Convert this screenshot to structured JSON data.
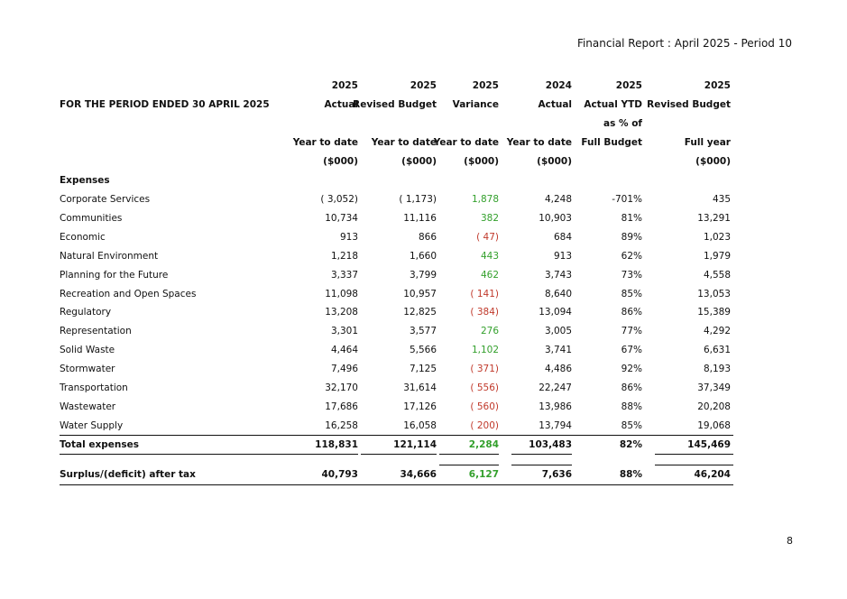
{
  "header": {
    "report_title": "Financial Report :  April 2025 - Period 10"
  },
  "page_number": "8",
  "table": {
    "period_label": "FOR THE PERIOD ENDED 30 APRIL 2025",
    "columns": [
      {
        "year": "2025",
        "title": "Actual",
        "extra": "",
        "subtitle": "Year to date",
        "unit": "($000)"
      },
      {
        "year": "2025",
        "title": "Revised Budget",
        "extra": "",
        "subtitle": "Year to date",
        "unit": "($000)"
      },
      {
        "year": "2025",
        "title": "Variance",
        "extra": "",
        "subtitle": "Year to date",
        "unit": "($000)"
      },
      {
        "year": "2024",
        "title": "Actual",
        "extra": "",
        "subtitle": "Year to date",
        "unit": "($000)"
      },
      {
        "year": "2025",
        "title": "Actual YTD",
        "extra": "as % of",
        "subtitle": "Full Budget",
        "unit": ""
      },
      {
        "year": "2025",
        "title": "Revised Budget",
        "extra": "",
        "subtitle": "Full year",
        "unit": "($000)"
      }
    ],
    "section_label": "Expenses",
    "rows": [
      {
        "label": "Corporate Services",
        "values": [
          "( 3,052)",
          "( 1,173)",
          "1,878",
          "4,248",
          "-701%",
          "435"
        ],
        "variance_sign": "pos"
      },
      {
        "label": "Communities",
        "values": [
          "10,734",
          "11,116",
          "382",
          "10,903",
          "81%",
          "13,291"
        ],
        "variance_sign": "pos"
      },
      {
        "label": "Economic",
        "values": [
          "913",
          "866",
          "( 47)",
          "684",
          "89%",
          "1,023"
        ],
        "variance_sign": "neg"
      },
      {
        "label": "Natural Environment",
        "values": [
          "1,218",
          "1,660",
          "443",
          "913",
          "62%",
          "1,979"
        ],
        "variance_sign": "pos"
      },
      {
        "label": "Planning for the Future",
        "values": [
          "3,337",
          "3,799",
          "462",
          "3,743",
          "73%",
          "4,558"
        ],
        "variance_sign": "pos"
      },
      {
        "label": "Recreation and Open Spaces",
        "values": [
          "11,098",
          "10,957",
          "( 141)",
          "8,640",
          "85%",
          "13,053"
        ],
        "variance_sign": "neg"
      },
      {
        "label": "Regulatory",
        "values": [
          "13,208",
          "12,825",
          "( 384)",
          "13,094",
          "86%",
          "15,389"
        ],
        "variance_sign": "neg"
      },
      {
        "label": "Representation",
        "values": [
          "3,301",
          "3,577",
          "276",
          "3,005",
          "77%",
          "4,292"
        ],
        "variance_sign": "pos"
      },
      {
        "label": "Solid Waste",
        "values": [
          "4,464",
          "5,566",
          "1,102",
          "3,741",
          "67%",
          "6,631"
        ],
        "variance_sign": "pos"
      },
      {
        "label": "Stormwater",
        "values": [
          "7,496",
          "7,125",
          "( 371)",
          "4,486",
          "92%",
          "8,193"
        ],
        "variance_sign": "neg"
      },
      {
        "label": "Transportation",
        "values": [
          "32,170",
          "31,614",
          "( 556)",
          "22,247",
          "86%",
          "37,349"
        ],
        "variance_sign": "neg"
      },
      {
        "label": "Wastewater",
        "values": [
          "17,686",
          "17,126",
          "( 560)",
          "13,986",
          "88%",
          "20,208"
        ],
        "variance_sign": "neg"
      },
      {
        "label": "Water Supply",
        "values": [
          "16,258",
          "16,058",
          "( 200)",
          "13,794",
          "85%",
          "19,068"
        ],
        "variance_sign": "neg"
      }
    ],
    "total": {
      "label": "Total expenses",
      "values": [
        "118,831",
        "121,114",
        "2,284",
        "103,483",
        "82%",
        "145,469"
      ]
    },
    "surplus": {
      "label": "Surplus/(deficit) after tax",
      "values": [
        "40,793",
        "34,666",
        "6,127",
        "7,636",
        "88%",
        "46,204"
      ]
    },
    "colors": {
      "positive": "#33a02c",
      "negative": "#c0392b"
    }
  }
}
